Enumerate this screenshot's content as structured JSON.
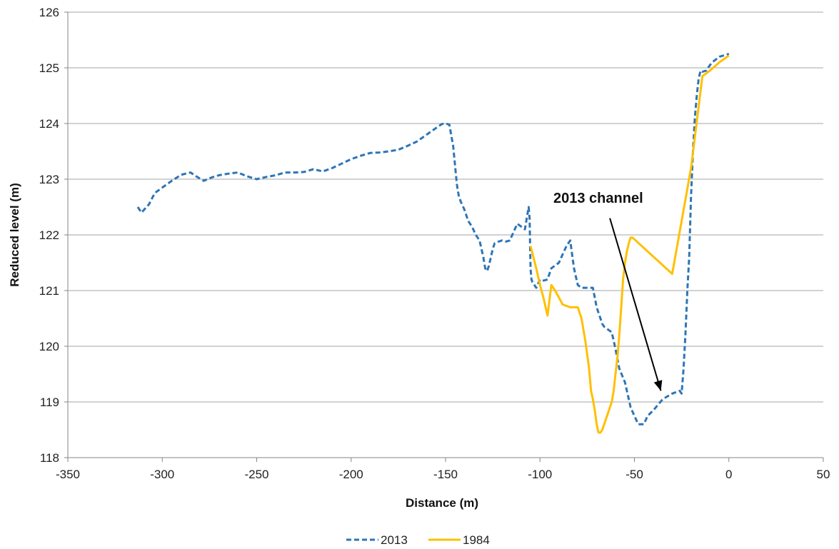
{
  "chart_data": {
    "type": "line",
    "title": "",
    "xlabel": "Distance (m)",
    "ylabel": "Reduced level (m)",
    "xlim": [
      -350,
      50
    ],
    "ylim": [
      118,
      126
    ],
    "xticks": [
      -350,
      -300,
      -250,
      -200,
      -150,
      -100,
      -50,
      0,
      50
    ],
    "yticks": [
      118,
      119,
      120,
      121,
      122,
      123,
      124,
      125,
      126
    ],
    "grid": "horizontal",
    "legend_position": "bottom",
    "annotation": {
      "text": "2013 channel",
      "arrow_from": [
        -63,
        122.3
      ],
      "arrow_to": [
        -36,
        119.2
      ]
    },
    "series": [
      {
        "name": "2013",
        "color": "#2e75b6",
        "style": "dashed",
        "x": [
          -313,
          -311,
          -307,
          -304,
          -300,
          -295,
          -290,
          -285,
          -282,
          -278,
          -274,
          -270,
          -265,
          -260,
          -255,
          -250,
          -245,
          -240,
          -235,
          -230,
          -225,
          -220,
          -215,
          -210,
          -205,
          -200,
          -195,
          -190,
          -185,
          -180,
          -175,
          -170,
          -165,
          -160,
          -155,
          -152,
          -150,
          -148,
          -146,
          -144,
          -143,
          -142,
          -140,
          -138,
          -136,
          -134,
          -132,
          -130,
          -129,
          -128,
          -127,
          -126,
          -125,
          -124,
          -122,
          -120,
          -118,
          -116,
          -112,
          -110,
          -108,
          -106,
          -105.5,
          -105,
          -104.5,
          -104,
          -102,
          -100,
          -98,
          -96,
          -94,
          -92,
          -90,
          -88,
          -86,
          -84,
          -83,
          -82,
          -81,
          -80,
          -78,
          -76,
          -74,
          -72,
          -70,
          -68,
          -67,
          -66,
          -64,
          -62,
          -60,
          -58,
          -55,
          -52,
          -48,
          -45,
          -43,
          -40,
          -35,
          -30,
          -26,
          -25,
          -24,
          -23,
          -22,
          -21,
          -20,
          -19,
          -18,
          -17,
          -16,
          -15,
          -14,
          -12,
          -10,
          -8,
          -5,
          0
        ],
        "y": [
          122.5,
          122.4,
          122.55,
          122.75,
          122.85,
          122.97,
          123.08,
          123.12,
          123.05,
          122.97,
          123.03,
          123.07,
          123.1,
          123.12,
          123.05,
          123.0,
          123.04,
          123.07,
          123.12,
          123.12,
          123.13,
          123.18,
          123.14,
          123.2,
          123.28,
          123.36,
          123.42,
          123.47,
          123.48,
          123.5,
          123.53,
          123.6,
          123.68,
          123.8,
          123.92,
          123.99,
          124.0,
          123.98,
          123.6,
          122.9,
          122.7,
          122.6,
          122.45,
          122.25,
          122.15,
          122.0,
          121.9,
          121.6,
          121.4,
          121.35,
          121.45,
          121.6,
          121.75,
          121.85,
          121.88,
          121.9,
          121.88,
          121.9,
          122.2,
          122.15,
          122.1,
          122.5,
          122.3,
          121.4,
          121.2,
          121.15,
          121.05,
          121.2,
          121.18,
          121.2,
          121.4,
          121.45,
          121.5,
          121.65,
          121.8,
          121.9,
          121.65,
          121.4,
          121.25,
          121.1,
          121.05,
          121.05,
          121.05,
          121.05,
          120.7,
          120.5,
          120.4,
          120.35,
          120.3,
          120.25,
          119.95,
          119.6,
          119.35,
          118.9,
          118.6,
          118.6,
          118.75,
          118.85,
          119.05,
          119.15,
          119.2,
          119.15,
          119.6,
          120.2,
          121.0,
          121.6,
          122.7,
          123.5,
          124.1,
          124.5,
          124.8,
          124.95,
          124.93,
          124.95,
          125.05,
          125.12,
          125.2,
          125.25
        ]
      },
      {
        "name": "1984",
        "color": "#ffc000",
        "style": "solid",
        "x": [
          -105,
          -102,
          -100,
          -98,
          -96,
          -94,
          -92,
          -88,
          -84,
          -80,
          -78,
          -76,
          -74,
          -73,
          -72,
          -71,
          -70,
          -69,
          -68,
          -67,
          -66,
          -65,
          -64,
          -63,
          -62,
          -61,
          -60,
          -59,
          -58,
          -57,
          -56,
          -55,
          -54,
          -53,
          -52,
          -51,
          -30,
          -20,
          -14,
          -10,
          -5,
          0
        ],
        "y": [
          121.8,
          121.4,
          121.1,
          120.85,
          120.55,
          121.1,
          121.0,
          120.75,
          120.7,
          120.7,
          120.5,
          120.1,
          119.6,
          119.2,
          119.05,
          118.85,
          118.6,
          118.45,
          118.45,
          118.5,
          118.6,
          118.7,
          118.8,
          118.9,
          119.0,
          119.2,
          119.5,
          119.8,
          120.2,
          120.7,
          121.2,
          121.5,
          121.7,
          121.85,
          121.95,
          121.95,
          121.3,
          123.2,
          124.85,
          124.95,
          125.1,
          125.22
        ]
      }
    ]
  }
}
